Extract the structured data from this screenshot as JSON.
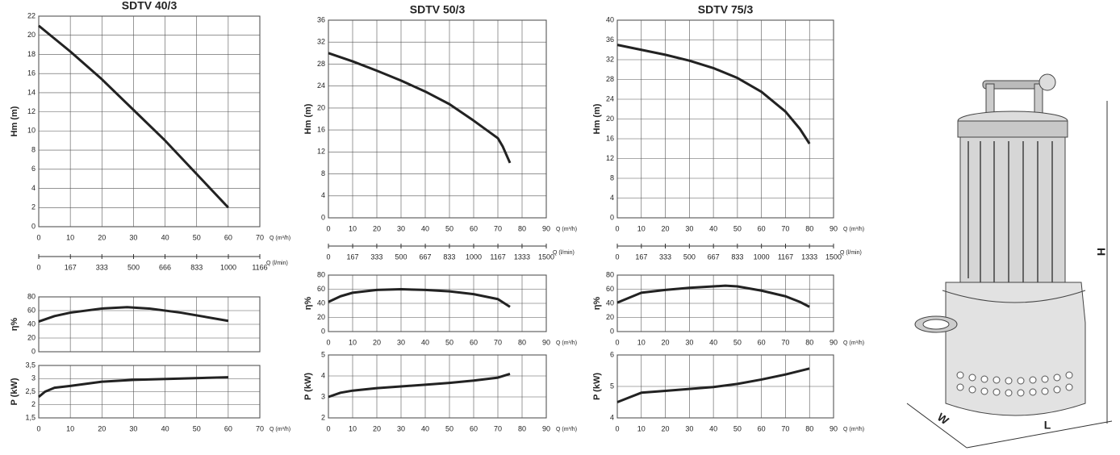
{
  "chart_data": [
    {
      "type": "line",
      "title": "SDTV 40/3",
      "ylabel": "Hm   (m)",
      "xlabel": "Q (m³/h)",
      "xlim": [
        0,
        70
      ],
      "xticks": [
        0,
        10,
        20,
        30,
        40,
        50,
        60,
        70
      ],
      "ylim": [
        0,
        22
      ],
      "yticks": [
        0,
        2,
        4,
        6,
        8,
        10,
        12,
        14,
        16,
        18,
        20,
        22
      ],
      "x2label": "Q (l/min)",
      "x2lim": [
        0,
        1166
      ],
      "x2ticks": [
        0,
        167,
        333,
        500,
        666,
        833,
        1000,
        1166
      ],
      "grid": true,
      "series": [
        {
          "color": "#222222",
          "x": [
            0,
            10,
            20,
            30,
            40,
            50,
            60
          ],
          "values": [
            21,
            18.3,
            15.4,
            12.2,
            9,
            5.5,
            2
          ]
        }
      ]
    },
    {
      "type": "line",
      "ylabel": "η%",
      "xlim": [
        0,
        70
      ],
      "xticks": [
        0,
        10,
        20,
        30,
        40,
        50,
        60,
        70
      ],
      "xtick_labels": false,
      "ylim": [
        0,
        80
      ],
      "yticks": [
        0,
        20,
        40,
        60,
        80
      ],
      "grid": true,
      "series": [
        {
          "color": "#222222",
          "x": [
            0,
            5,
            10,
            20,
            28,
            35,
            45,
            60
          ],
          "values": [
            44,
            52,
            57,
            63,
            65,
            63,
            57,
            45
          ]
        }
      ]
    },
    {
      "type": "line",
      "ylabel": "P   (kW)",
      "xlabel": "Q (m³/h)",
      "xlim": [
        0,
        70
      ],
      "xticks": [
        0,
        10,
        20,
        30,
        40,
        50,
        60,
        70
      ],
      "ylim": [
        1.5,
        3.5
      ],
      "yticks": [
        {
          "value": 1.5,
          "label": "1,5"
        },
        2,
        {
          "value": 2.5,
          "label": "2,5"
        },
        3,
        {
          "value": 3.5,
          "label": "3,5"
        }
      ],
      "grid": true,
      "series": [
        {
          "color": "#222222",
          "x": [
            0,
            2,
            5,
            10,
            20,
            30,
            45,
            60
          ],
          "values": [
            2.3,
            2.5,
            2.65,
            2.72,
            2.88,
            2.95,
            3,
            3.05
          ]
        }
      ]
    },
    {
      "type": "line",
      "title": "SDTV 50/3",
      "ylabel": "Hm   (m)",
      "xlabel": "Q (m³/h)",
      "xlim": [
        0,
        90
      ],
      "xticks": [
        0,
        10,
        20,
        30,
        40,
        50,
        60,
        70,
        80,
        90
      ],
      "ylim": [
        0,
        36
      ],
      "yticks": [
        0,
        4,
        8,
        12,
        16,
        20,
        24,
        28,
        32,
        36
      ],
      "x2label": "Q (l/min)",
      "x2lim": [
        0,
        1500
      ],
      "x2ticks": [
        0,
        167,
        333,
        500,
        667,
        833,
        1000,
        1167,
        1333,
        1500
      ],
      "grid": true,
      "series": [
        {
          "color": "#222222",
          "x": [
            0,
            10,
            20,
            30,
            40,
            50,
            60,
            70,
            72,
            75
          ],
          "values": [
            30,
            28.5,
            26.8,
            25,
            23,
            20.7,
            17.7,
            14.5,
            13,
            10
          ]
        }
      ]
    },
    {
      "type": "line",
      "ylabel": "η%",
      "xlabel": "Q (m³/h)",
      "xlim": [
        0,
        90
      ],
      "xticks": [
        0,
        10,
        20,
        30,
        40,
        50,
        60,
        70,
        80,
        90
      ],
      "ylim": [
        0,
        80
      ],
      "yticks": [
        0,
        20,
        40,
        60,
        80
      ],
      "grid": true,
      "series": [
        {
          "color": "#222222",
          "x": [
            0,
            5,
            10,
            20,
            30,
            40,
            50,
            60,
            70,
            75
          ],
          "values": [
            42,
            50,
            55,
            59,
            60,
            59,
            57,
            53,
            46,
            35
          ]
        }
      ]
    },
    {
      "type": "line",
      "ylabel": "P   (kW)",
      "xlabel": "Q (m³/h)",
      "xlim": [
        0,
        90
      ],
      "xticks": [
        0,
        10,
        20,
        30,
        40,
        50,
        60,
        70,
        80,
        90
      ],
      "ylim": [
        2,
        5
      ],
      "yticks": [
        2,
        3,
        4,
        5
      ],
      "grid": true,
      "series": [
        {
          "color": "#222222",
          "x": [
            0,
            5,
            10,
            20,
            30,
            40,
            50,
            60,
            70,
            75
          ],
          "values": [
            3,
            3.2,
            3.3,
            3.42,
            3.5,
            3.58,
            3.67,
            3.78,
            3.92,
            4.1
          ]
        }
      ]
    },
    {
      "type": "line",
      "title": "SDTV 75/3",
      "ylabel": "Hm   (m)",
      "xlabel": "Q (m³/h)",
      "xlim": [
        0,
        90
      ],
      "xticks": [
        0,
        10,
        20,
        30,
        40,
        50,
        60,
        70,
        80,
        90
      ],
      "ylim": [
        0,
        40
      ],
      "yticks": [
        0,
        4,
        8,
        12,
        16,
        20,
        24,
        28,
        32,
        36,
        40
      ],
      "x2label": "Q (l/min)",
      "x2lim": [
        0,
        1500
      ],
      "x2ticks": [
        0,
        167,
        333,
        500,
        667,
        833,
        1000,
        1167,
        1333,
        1500
      ],
      "grid": true,
      "series": [
        {
          "color": "#222222",
          "x": [
            0,
            10,
            20,
            30,
            40,
            50,
            60,
            70,
            76,
            80
          ],
          "values": [
            35,
            34,
            33,
            31.8,
            30.3,
            28.3,
            25.5,
            21.5,
            18,
            15
          ]
        }
      ]
    },
    {
      "type": "line",
      "ylabel": "η%",
      "xlabel": "Q (m³/h)",
      "xlim": [
        0,
        90
      ],
      "xticks": [
        0,
        10,
        20,
        30,
        40,
        50,
        60,
        70,
        80,
        90
      ],
      "ylim": [
        0,
        80
      ],
      "yticks": [
        0,
        20,
        40,
        60,
        80
      ],
      "grid": true,
      "series": [
        {
          "color": "#222222",
          "x": [
            0,
            10,
            20,
            30,
            40,
            45,
            50,
            60,
            70,
            76,
            80
          ],
          "values": [
            41,
            55,
            59,
            62,
            64,
            65,
            64,
            58,
            50,
            42,
            35
          ]
        }
      ]
    },
    {
      "type": "line",
      "ylabel": "P   (kW)",
      "xlabel": "Q (m³/h)",
      "xlim": [
        0,
        90
      ],
      "xticks": [
        0,
        10,
        20,
        30,
        40,
        50,
        60,
        70,
        80,
        90
      ],
      "ylim": [
        4,
        6
      ],
      "yticks": [
        4,
        5,
        6
      ],
      "grid": true,
      "series": [
        {
          "color": "#222222",
          "x": [
            0,
            5,
            10,
            20,
            30,
            40,
            50,
            60,
            70,
            80
          ],
          "values": [
            4.5,
            4.65,
            4.8,
            4.86,
            4.92,
            4.98,
            5.08,
            5.22,
            5.38,
            5.57
          ]
        }
      ]
    }
  ],
  "illustration": {
    "height": "H",
    "width": "W",
    "length": "L"
  }
}
